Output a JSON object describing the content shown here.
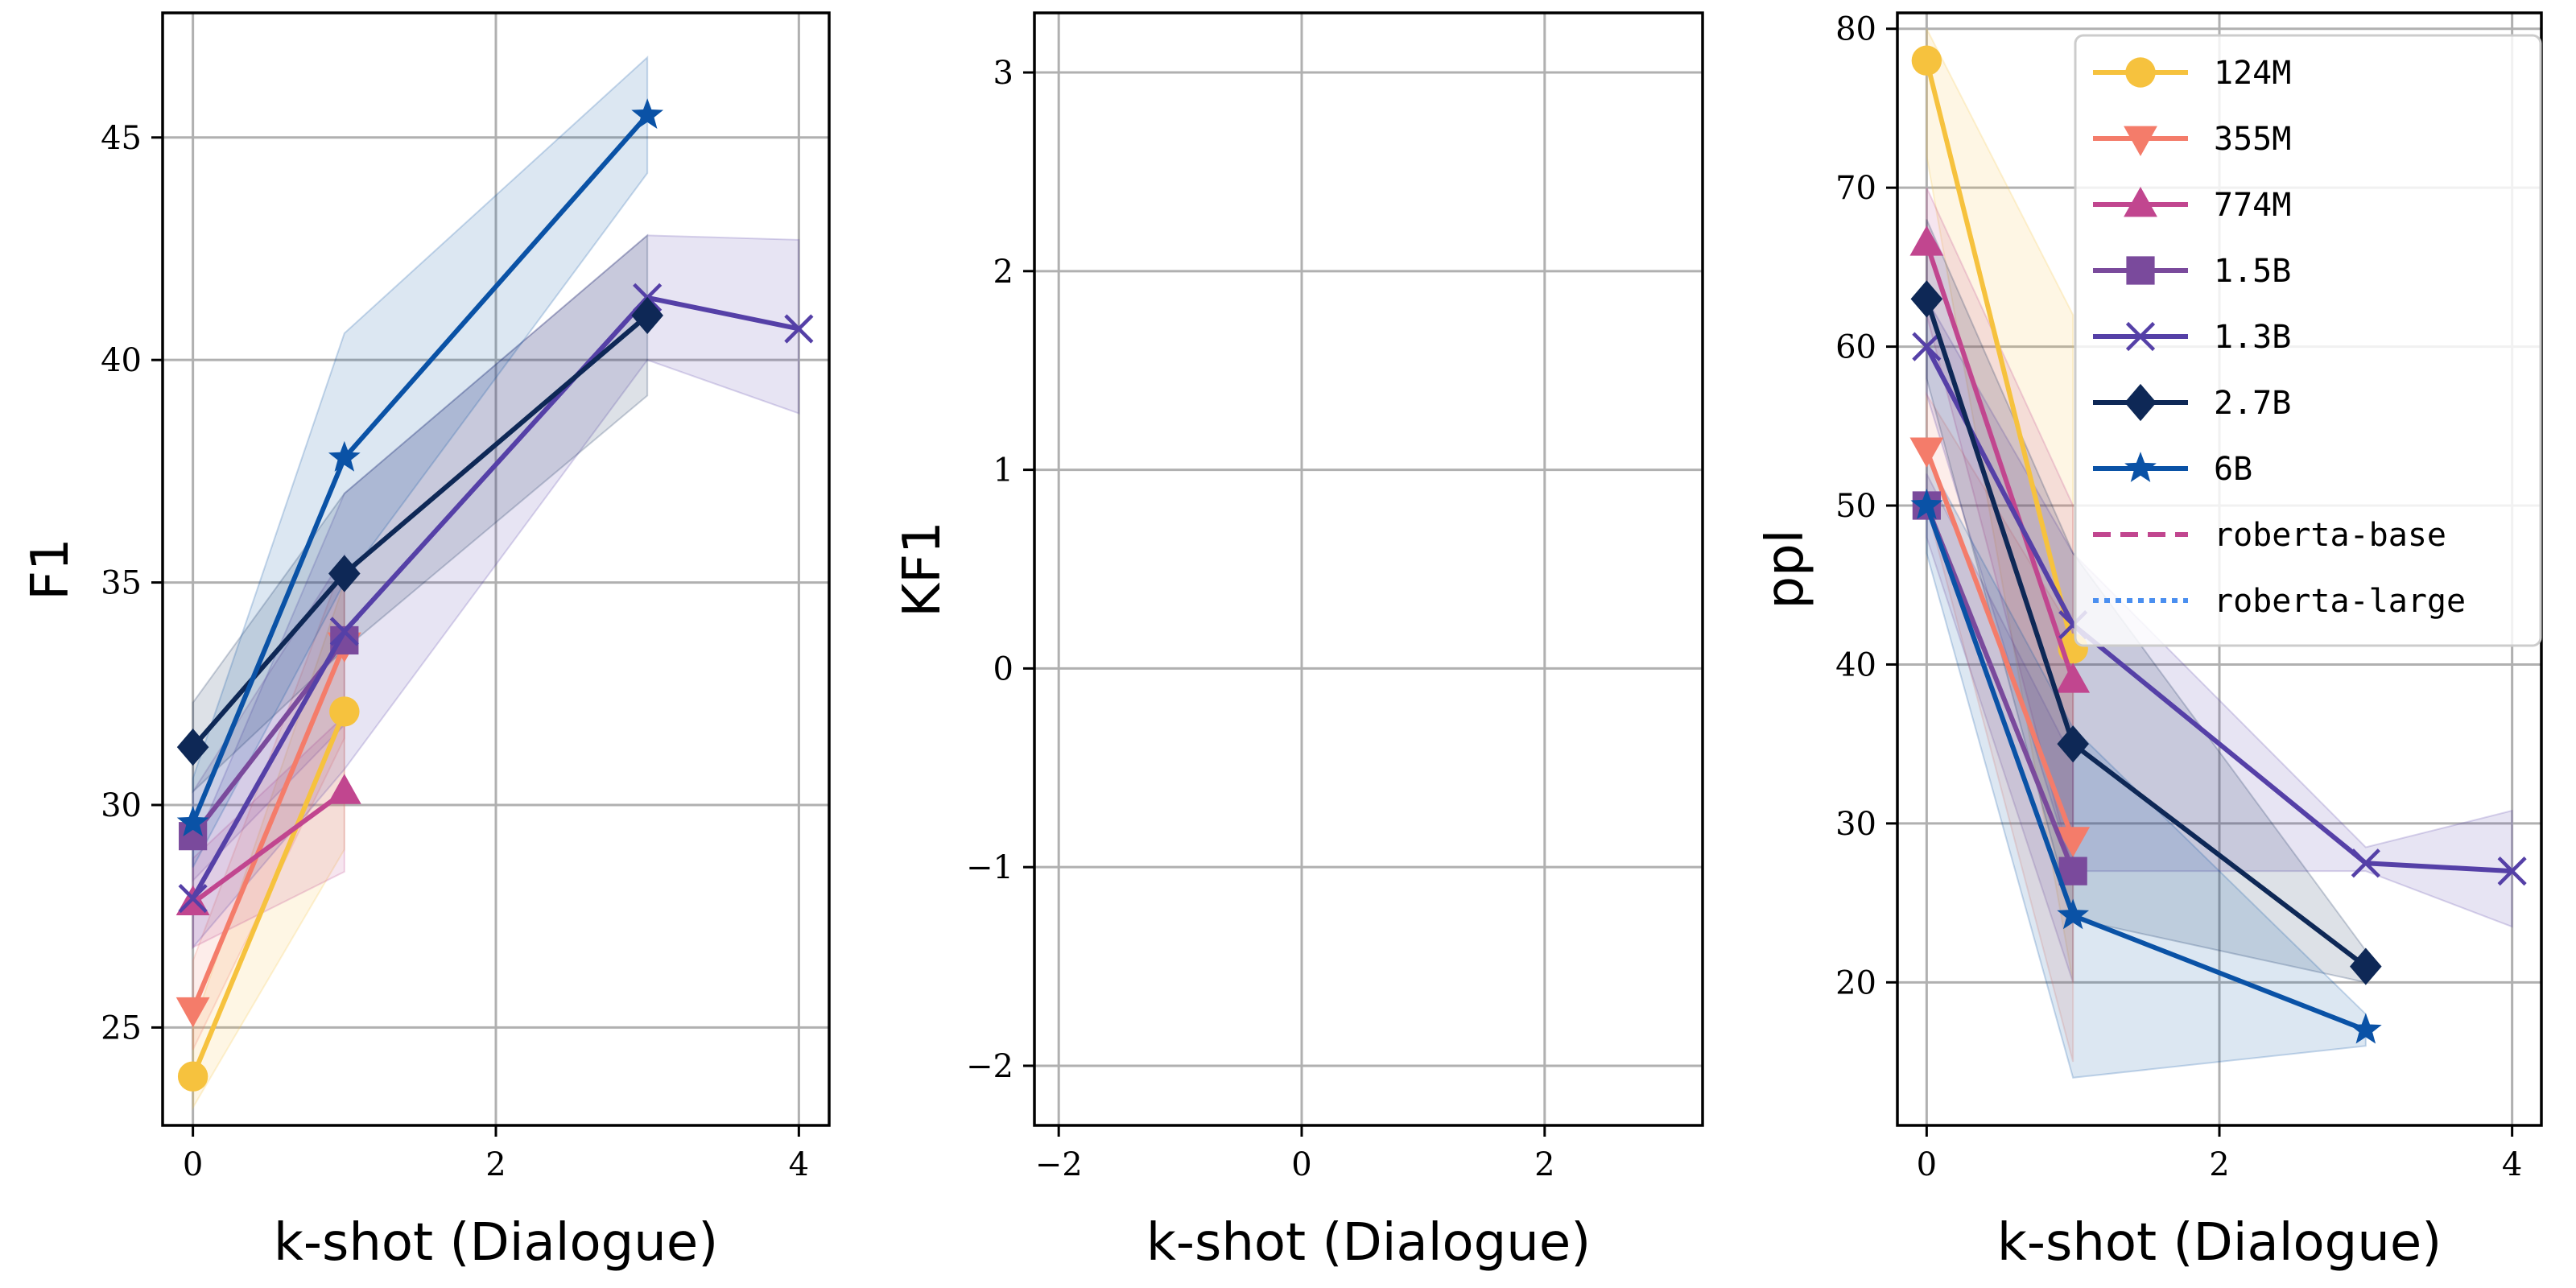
{
  "chart_data": [
    {
      "type": "line",
      "xlabel": "k-shot (Dialogue)",
      "ylabel": "F1",
      "xlim": [
        -0.2,
        4.2
      ],
      "ylim": [
        22.8,
        47.8
      ],
      "xticks": [
        0,
        2,
        4
      ],
      "xtick_labels": [
        "0",
        "2",
        "4"
      ],
      "yticks": [
        25,
        30,
        35,
        40,
        45
      ],
      "ytick_labels": [
        "25",
        "30",
        "35",
        "40",
        "45"
      ],
      "grid": true,
      "series": [
        {
          "name": "124M",
          "color": "#f6c23e",
          "marker": "circle",
          "x": [
            0,
            1
          ],
          "y": [
            23.9,
            32.1
          ],
          "band_low": [
            23.2,
            29.0
          ],
          "band_high": [
            25.0,
            35.0
          ]
        },
        {
          "name": "355M",
          "color": "#f47c6a",
          "marker": "triangle-down",
          "x": [
            0,
            1
          ],
          "y": [
            25.4,
            33.6
          ],
          "band_low": [
            24.5,
            31.5
          ],
          "band_high": [
            26.5,
            35.5
          ]
        },
        {
          "name": "774M",
          "color": "#c1468f",
          "marker": "triangle-up",
          "x": [
            0,
            1
          ],
          "y": [
            27.8,
            30.3
          ],
          "band_low": [
            26.8,
            28.5
          ],
          "band_high": [
            28.8,
            32.0
          ]
        },
        {
          "name": "1.5B",
          "color": "#7a4a9c",
          "marker": "square",
          "x": [
            0,
            1
          ],
          "y": [
            29.3,
            33.7
          ],
          "band_low": [
            28.3,
            31.8
          ],
          "band_high": [
            30.3,
            35.6
          ]
        },
        {
          "name": "1.3B",
          "color": "#5540a7",
          "marker": "x",
          "x": [
            0,
            1,
            3,
            4
          ],
          "y": [
            27.9,
            33.9,
            41.4,
            40.7
          ],
          "band_low": [
            26.8,
            30.8,
            40.0,
            38.8
          ],
          "band_high": [
            29.0,
            37.0,
            42.8,
            42.7
          ]
        },
        {
          "name": "2.7B",
          "color": "#0e2856",
          "marker": "diamond",
          "x": [
            0,
            1,
            3
          ],
          "y": [
            31.3,
            35.2,
            41.0
          ],
          "band_low": [
            30.3,
            33.5,
            39.2
          ],
          "band_high": [
            32.3,
            37.0,
            42.8
          ]
        },
        {
          "name": "6B",
          "color": "#0a52a6",
          "marker": "star",
          "x": [
            0,
            1,
            3
          ],
          "y": [
            29.6,
            37.8,
            45.5
          ],
          "band_low": [
            28.6,
            35.0,
            44.2
          ],
          "band_high": [
            30.6,
            40.6,
            46.8
          ]
        }
      ]
    },
    {
      "type": "line",
      "xlabel": "k-shot (Dialogue)",
      "ylabel": "KF1",
      "xlim": [
        -2.2,
        3.3
      ],
      "ylim": [
        -2.3,
        3.3
      ],
      "xticks": [
        -2,
        0,
        2
      ],
      "xtick_labels": [
        "−2",
        "0",
        "2"
      ],
      "yticks": [
        -2,
        -1,
        0,
        1,
        2,
        3
      ],
      "ytick_labels": [
        "−2",
        "−1",
        "0",
        "1",
        "2",
        "3"
      ],
      "grid": true,
      "series": []
    },
    {
      "type": "line",
      "xlabel": "k-shot (Dialogue)",
      "ylabel": "ppl",
      "xlim": [
        -0.2,
        4.2
      ],
      "ylim": [
        11,
        81
      ],
      "xticks": [
        0,
        2,
        4
      ],
      "xtick_labels": [
        "0",
        "2",
        "4"
      ],
      "yticks": [
        20,
        30,
        40,
        50,
        60,
        70,
        80
      ],
      "ytick_labels": [
        "20",
        "30",
        "40",
        "50",
        "60",
        "70",
        "80"
      ],
      "grid": true,
      "legend_position": "top-right",
      "series": [
        {
          "name": "124M",
          "color": "#f6c23e",
          "marker": "circle",
          "x": [
            0,
            1
          ],
          "y": [
            78.0,
            41.0
          ],
          "band_low": [
            72.0,
            20.0
          ],
          "band_high": [
            80.0,
            62.0
          ]
        },
        {
          "name": "355M",
          "color": "#f47c6a",
          "marker": "triangle-down",
          "x": [
            0,
            1
          ],
          "y": [
            53.5,
            29.0
          ],
          "band_low": [
            50.0,
            15.0
          ],
          "band_high": [
            57.0,
            42.0
          ]
        },
        {
          "name": "774M",
          "color": "#c1468f",
          "marker": "triangle-up",
          "x": [
            0,
            1
          ],
          "y": [
            66.5,
            39.0
          ],
          "band_low": [
            62.0,
            27.0
          ],
          "band_high": [
            70.0,
            50.0
          ]
        },
        {
          "name": "1.5B",
          "color": "#7a4a9c",
          "marker": "square",
          "x": [
            0,
            1
          ],
          "y": [
            50.0,
            27.0
          ],
          "band_low": [
            48.0,
            20.0
          ],
          "band_high": [
            52.0,
            34.0
          ]
        },
        {
          "name": "1.3B",
          "color": "#5540a7",
          "marker": "x",
          "x": [
            0,
            1,
            3,
            4
          ],
          "y": [
            60.0,
            42.5,
            27.5,
            27.0
          ],
          "band_low": [
            57.0,
            27.0,
            27.0,
            23.5
          ],
          "band_high": [
            63.0,
            47.0,
            28.5,
            30.8
          ]
        },
        {
          "name": "2.7B",
          "color": "#0e2856",
          "marker": "diamond",
          "x": [
            0,
            1,
            3
          ],
          "y": [
            63.0,
            35.0,
            21.0
          ],
          "band_low": [
            58.0,
            24.0,
            20.0
          ],
          "band_high": [
            68.0,
            47.0,
            22.0
          ]
        },
        {
          "name": "6B",
          "color": "#0a52a6",
          "marker": "star",
          "x": [
            0,
            1,
            3
          ],
          "y": [
            50.0,
            24.2,
            17.0
          ],
          "band_low": [
            47.0,
            14.0,
            16.0
          ],
          "band_high": [
            53.0,
            36.0,
            18.0
          ]
        },
        {
          "name": "roberta-base",
          "color": "#c1468f",
          "line_style": "dashed",
          "x": [],
          "y": []
        },
        {
          "name": "roberta-large",
          "color": "#4a8ff0",
          "line_style": "dotted",
          "x": [],
          "y": []
        }
      ]
    }
  ]
}
